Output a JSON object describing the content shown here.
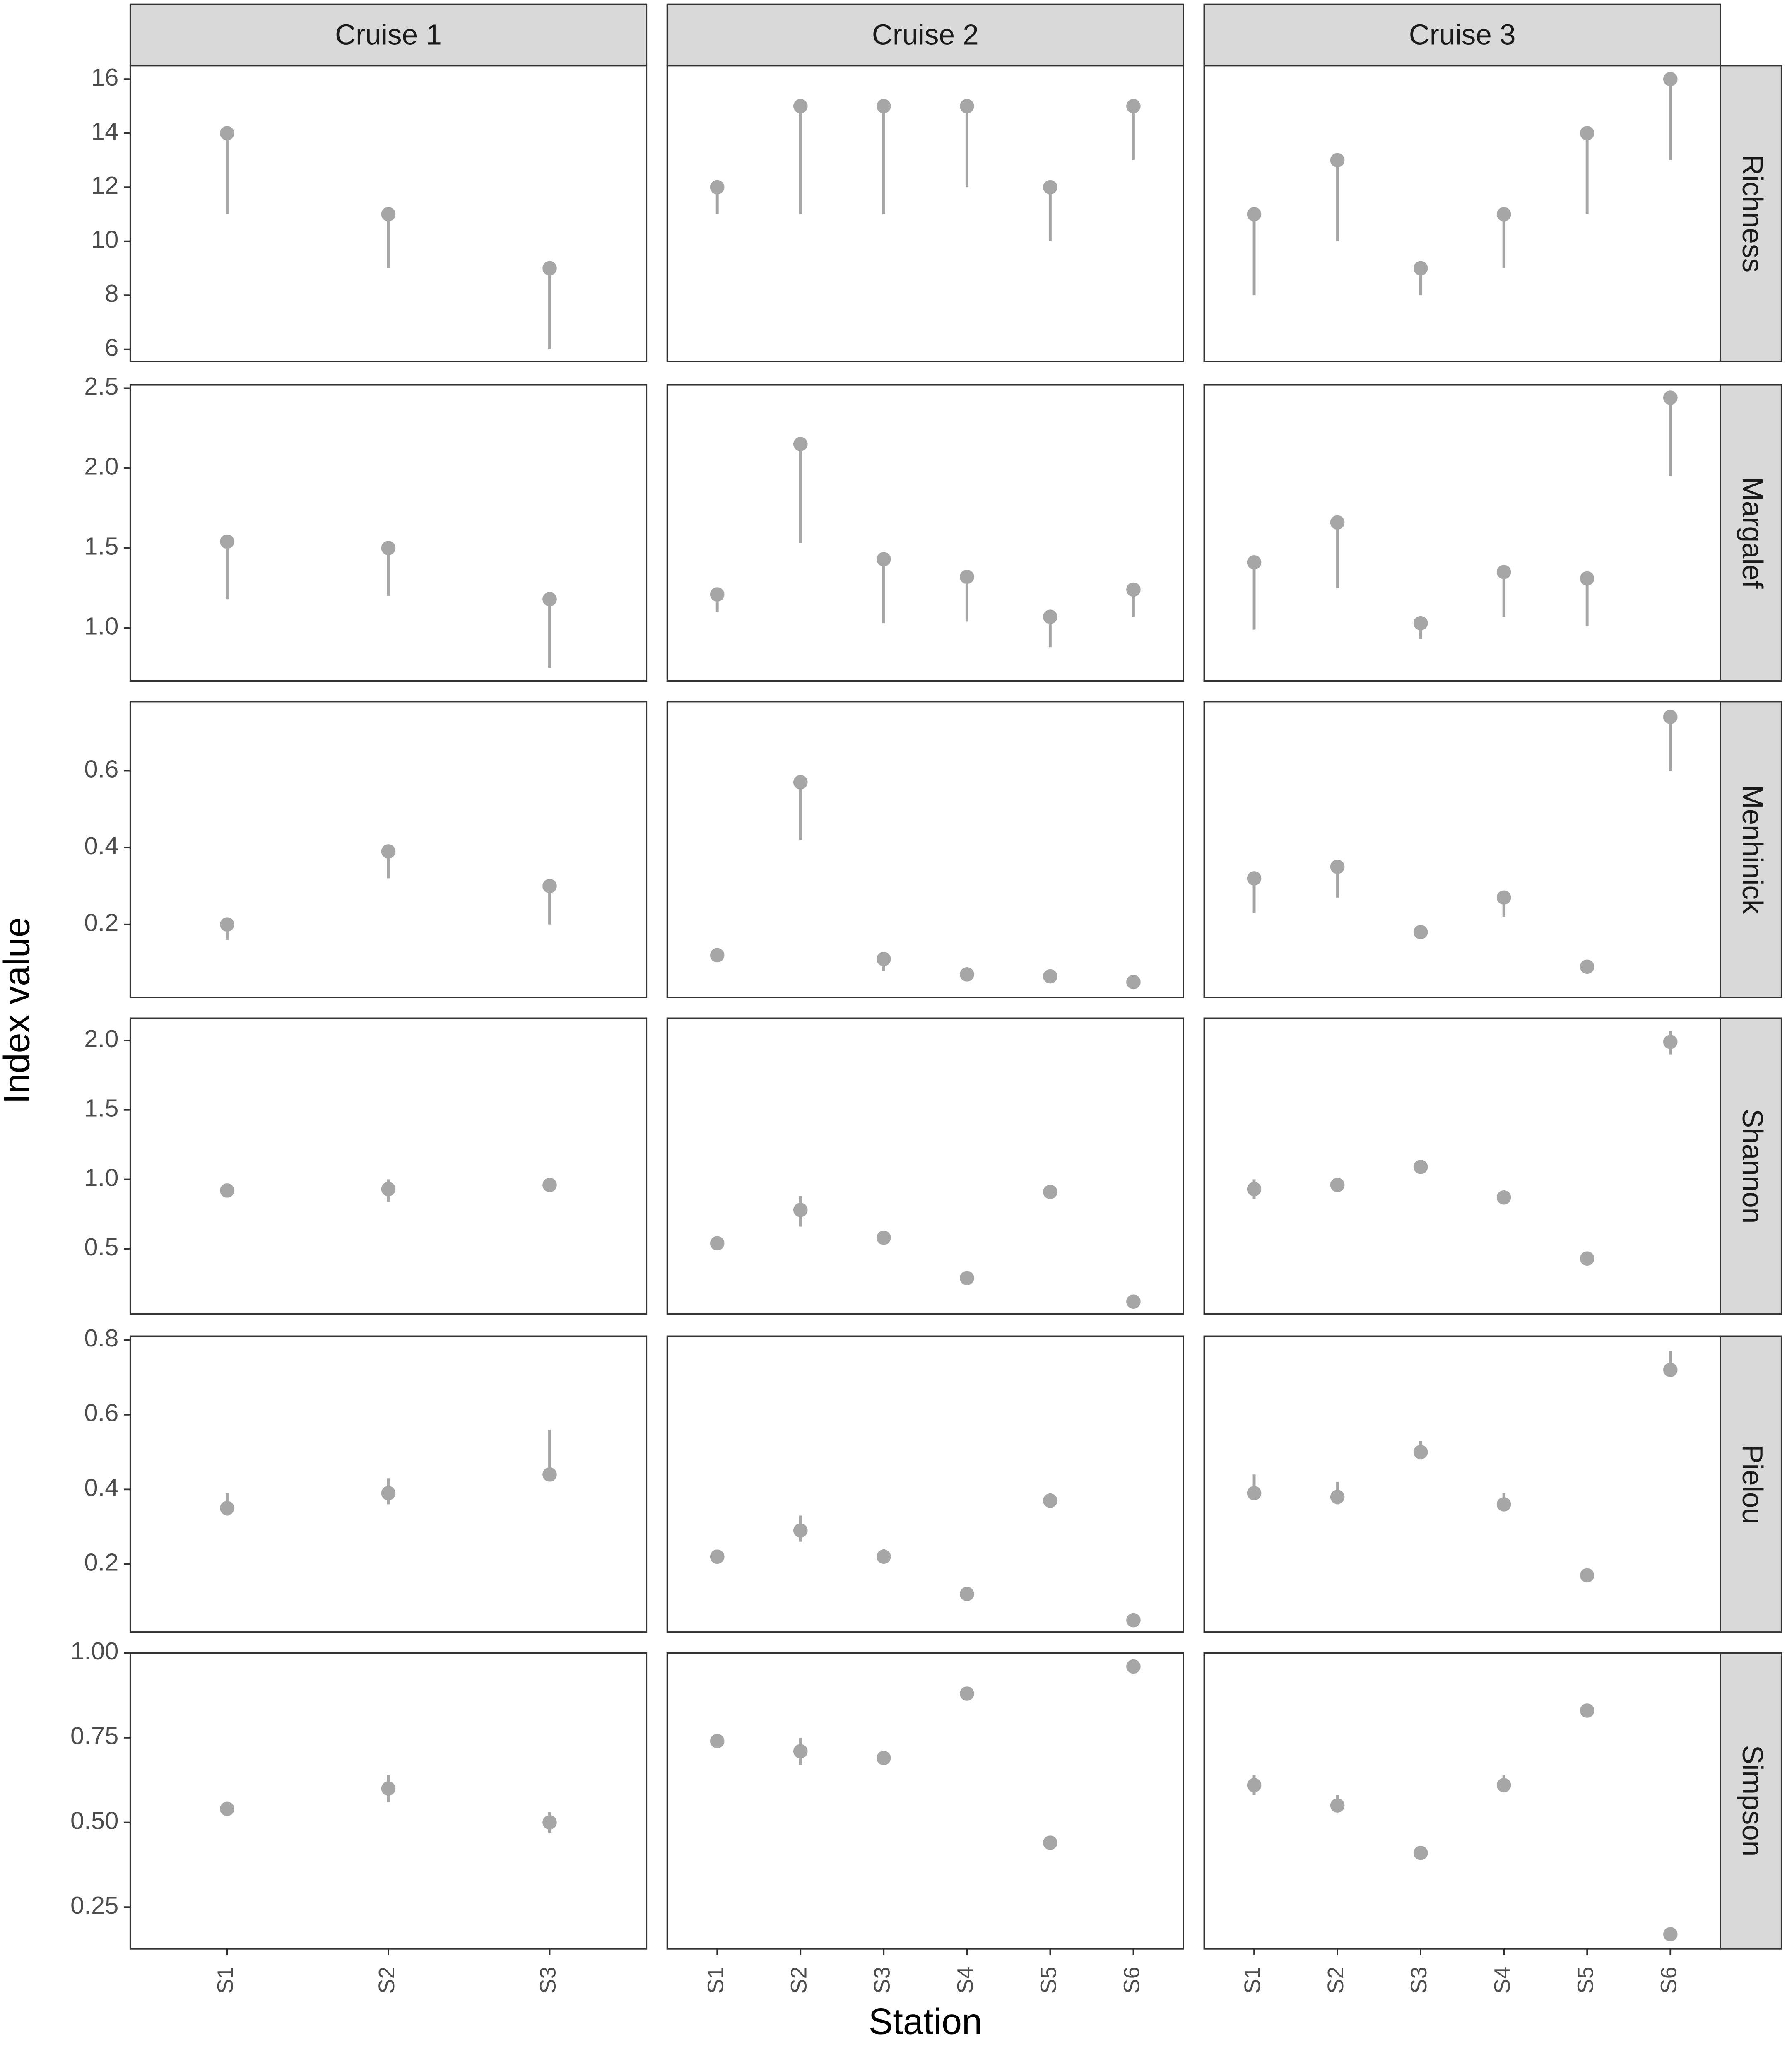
{
  "chart_data": {
    "type": "pointrange",
    "x_label": "Station",
    "y_label": "Index value",
    "color": "#a6a6a6",
    "columns": [
      {
        "name": "Cruise 1",
        "categories": [
          "S1",
          "S2",
          "S3"
        ]
      },
      {
        "name": "Cruise 2",
        "categories": [
          "S1",
          "S2",
          "S3",
          "S4",
          "S5",
          "S6"
        ]
      },
      {
        "name": "Cruise 3",
        "categories": [
          "S1",
          "S2",
          "S3",
          "S4",
          "S5",
          "S6"
        ]
      }
    ],
    "rows": [
      {
        "name": "Richness",
        "ylim": [
          5.55,
          16.5
        ],
        "yticks": [
          6,
          8,
          10,
          12,
          14,
          16
        ],
        "series": [
          {
            "values": [
              14,
              11,
              9
            ],
            "low": [
              11,
              9,
              6
            ],
            "high": [
              14,
              11,
              9
            ]
          },
          {
            "values": [
              12,
              15,
              15,
              15,
              12,
              15
            ],
            "low": [
              11,
              11,
              11,
              12,
              10,
              13
            ],
            "high": [
              12,
              15,
              15,
              15,
              12,
              15
            ]
          },
          {
            "values": [
              11,
              13,
              9,
              11,
              14,
              16
            ],
            "low": [
              8,
              10,
              8,
              9,
              11,
              13
            ],
            "high": [
              11,
              13,
              9,
              11,
              14,
              16
            ]
          }
        ]
      },
      {
        "name": "Margalef",
        "ylim": [
          0.67,
          2.52
        ],
        "yticks": [
          {
            "value": 1,
            "label": "1.0"
          },
          1.5,
          {
            "value": 2,
            "label": "2.0"
          },
          2.5
        ],
        "series": [
          {
            "values": [
              1.54,
              1.5,
              1.18
            ],
            "low": [
              1.18,
              1.2,
              0.75
            ],
            "high": [
              1.54,
              1.5,
              1.18
            ]
          },
          {
            "values": [
              1.21,
              2.15,
              1.43,
              1.32,
              1.07,
              1.24
            ],
            "low": [
              1.1,
              1.53,
              1.03,
              1.04,
              0.88,
              1.07
            ],
            "high": [
              1.21,
              2.15,
              1.43,
              1.32,
              1.07,
              1.24
            ]
          },
          {
            "values": [
              1.41,
              1.66,
              1.03,
              1.35,
              1.31,
              2.44
            ],
            "low": [
              0.99,
              1.25,
              0.93,
              1.07,
              1.01,
              1.95
            ],
            "high": [
              1.41,
              1.66,
              1.03,
              1.35,
              1.31,
              2.44
            ]
          }
        ]
      },
      {
        "name": "Menhinick",
        "ylim": [
          0.01,
          0.78
        ],
        "yticks": [
          0.2,
          0.4,
          0.6
        ],
        "series": [
          {
            "values": [
              0.2,
              0.39,
              0.3
            ],
            "low": [
              0.16,
              0.32,
              0.2
            ],
            "high": [
              0.2,
              0.39,
              0.3
            ]
          },
          {
            "values": [
              0.12,
              0.57,
              0.11,
              0.07,
              0.065,
              0.05
            ],
            "low": [
              0.12,
              0.42,
              0.08,
              0.07,
              0.065,
              0.05
            ],
            "high": [
              0.12,
              0.57,
              0.11,
              0.07,
              0.065,
              0.05
            ]
          },
          {
            "values": [
              0.32,
              0.35,
              0.18,
              0.27,
              0.09,
              0.74
            ],
            "low": [
              0.23,
              0.27,
              0.18,
              0.22,
              0.09,
              0.6
            ],
            "high": [
              0.32,
              0.35,
              0.18,
              0.27,
              0.09,
              0.74
            ]
          }
        ]
      },
      {
        "name": "Shannon",
        "ylim": [
          0.03,
          2.16
        ],
        "yticks": [
          0.5,
          {
            "value": 1,
            "label": "1.0"
          },
          1.5,
          {
            "value": 2,
            "label": "2.0"
          }
        ],
        "series": [
          {
            "values": [
              0.92,
              0.93,
              0.96
            ],
            "low": [
              0.92,
              0.84,
              0.91
            ],
            "high": [
              0.92,
              1.0,
              1.01
            ]
          },
          {
            "values": [
              0.54,
              0.78,
              0.58,
              0.29,
              0.91,
              0.12
            ],
            "low": [
              0.54,
              0.66,
              0.58,
              0.29,
              0.91,
              0.12
            ],
            "high": [
              0.54,
              0.88,
              0.58,
              0.29,
              0.91,
              0.12
            ]
          },
          {
            "values": [
              0.93,
              0.96,
              1.09,
              0.87,
              0.43,
              1.99
            ],
            "low": [
              0.86,
              0.92,
              1.09,
              0.84,
              0.43,
              1.9
            ],
            "high": [
              1.0,
              1.0,
              1.09,
              0.9,
              0.43,
              2.07
            ]
          }
        ]
      },
      {
        "name": "Pielou",
        "ylim": [
          0.018,
          0.81
        ],
        "yticks": [
          0.2,
          0.4,
          0.6,
          0.8
        ],
        "series": [
          {
            "values": [
              0.35,
              0.39,
              0.44
            ],
            "low": [
              0.33,
              0.36,
              0.44
            ],
            "high": [
              0.39,
              0.43,
              0.56
            ]
          },
          {
            "values": [
              0.22,
              0.29,
              0.22,
              0.12,
              0.37,
              0.05
            ],
            "low": [
              0.22,
              0.26,
              0.21,
              0.12,
              0.35,
              0.05
            ],
            "high": [
              0.22,
              0.33,
              0.24,
              0.12,
              0.39,
              0.05
            ]
          },
          {
            "values": [
              0.39,
              0.38,
              0.5,
              0.36,
              0.17,
              0.72
            ],
            "low": [
              0.38,
              0.36,
              0.48,
              0.35,
              0.17,
              0.72
            ],
            "high": [
              0.44,
              0.42,
              0.53,
              0.39,
              0.17,
              0.77
            ]
          }
        ]
      },
      {
        "name": "Simpson",
        "ylim": [
          0.127,
          1.0
        ],
        "yticks": [
          0.25,
          {
            "value": 0.5,
            "label": "0.50"
          },
          0.75,
          {
            "value": 1,
            "label": "1.00"
          }
        ],
        "series": [
          {
            "values": [
              0.54,
              0.6,
              0.5
            ],
            "low": [
              0.54,
              0.56,
              0.47
            ],
            "high": [
              0.54,
              0.64,
              0.53
            ]
          },
          {
            "values": [
              0.74,
              0.71,
              0.69,
              0.88,
              0.44,
              0.96
            ],
            "low": [
              0.74,
              0.67,
              0.69,
              0.88,
              0.44,
              0.96
            ],
            "high": [
              0.74,
              0.75,
              0.69,
              0.88,
              0.44,
              0.96
            ]
          },
          {
            "values": [
              0.61,
              0.55,
              0.41,
              0.61,
              0.83,
              0.17
            ],
            "low": [
              0.58,
              0.53,
              0.41,
              0.59,
              0.83,
              0.17
            ],
            "high": [
              0.64,
              0.58,
              0.41,
              0.64,
              0.83,
              0.17
            ]
          }
        ]
      }
    ]
  }
}
